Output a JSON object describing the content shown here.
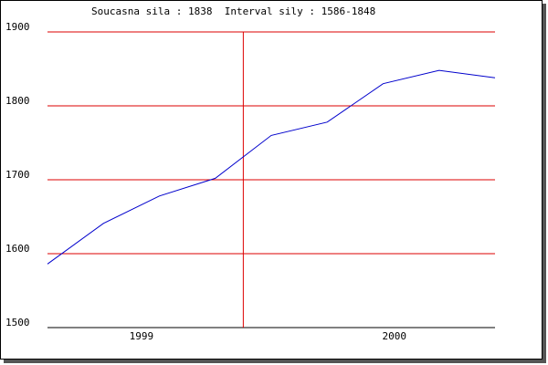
{
  "chart_data": {
    "type": "line",
    "title": "Soucasna sila : 1838  Interval sily : 1586-1848",
    "x": [
      0,
      1,
      2,
      3,
      4,
      5,
      6,
      7,
      8
    ],
    "series": [
      {
        "color": "#0000cc",
        "values": [
          1586,
          1641,
          1678,
          1702,
          1760,
          1778,
          1830,
          1848,
          1838
        ]
      }
    ],
    "xlim": [
      0,
      8
    ],
    "xticks": [
      {
        "value": 1.68,
        "label": "1999"
      },
      {
        "value": 6.2,
        "label": "2000"
      }
    ],
    "vline": 3.5,
    "ylim": [
      1500,
      1900
    ],
    "yticks": [
      1500,
      1600,
      1700,
      1800,
      1900
    ],
    "grid": true,
    "grid_color": "#dd0000"
  }
}
